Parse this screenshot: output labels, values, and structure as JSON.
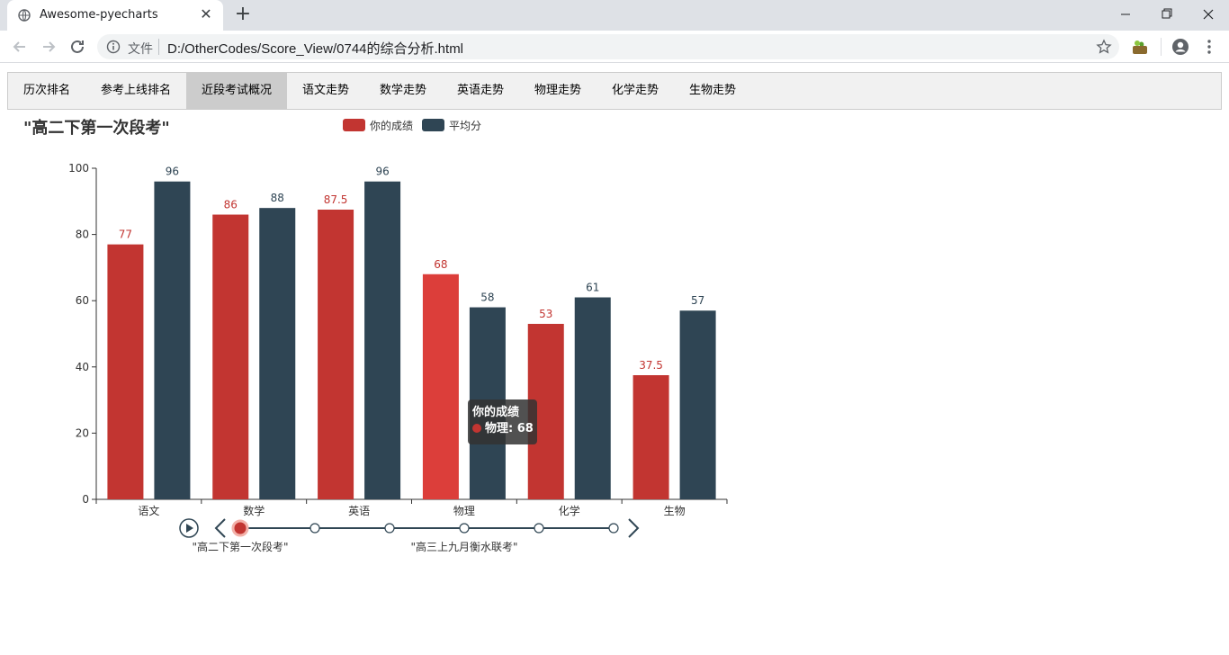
{
  "browser": {
    "tab_title": "Awesome-pyecharts",
    "tab_close": "✕",
    "new_tab": "+",
    "file_label": "文件",
    "url": "D:/OtherCodes/Score_View/0744的综合分析.html"
  },
  "nav": {
    "items": [
      "历次排名",
      "参考上线排名",
      "近段考试概况",
      "语文走势",
      "数学走势",
      "英语走势",
      "物理走势",
      "化学走势",
      "生物走势"
    ],
    "active_index": 2
  },
  "colors": {
    "series_1": "#c23531",
    "series_1_emphasis": "#dc3e3a",
    "series_2": "#2f4554",
    "timeline": "#304654"
  },
  "chart_data": {
    "type": "bar",
    "title": "\"高二下第一次段考\"",
    "categories": [
      "语文",
      "数学",
      "英语",
      "物理",
      "化学",
      "生物"
    ],
    "series": [
      {
        "name": "你的成绩",
        "values": [
          77,
          86,
          87.5,
          68,
          53,
          37.5
        ]
      },
      {
        "name": "平均分",
        "values": [
          96,
          88,
          96,
          58,
          61,
          57
        ]
      }
    ],
    "ylim": [
      0,
      100
    ],
    "yticks": [
      0,
      20,
      40,
      60,
      80,
      100
    ],
    "legend_position": "top-center",
    "tooltip": {
      "series": "你的成绩",
      "text": "物理: 68"
    },
    "timeline": {
      "points": 6,
      "current_index": 0,
      "labels": [
        "\"高二下第一次段考\"",
        "\"高三上九月衡水联考\""
      ]
    }
  }
}
